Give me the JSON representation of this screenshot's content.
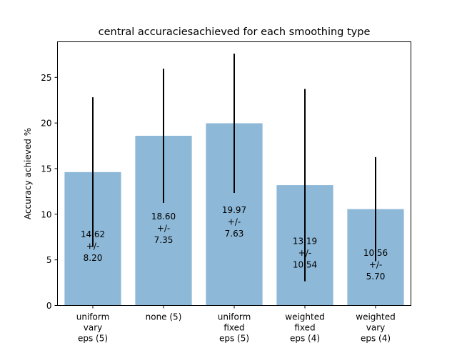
{
  "chart_data": {
    "type": "bar",
    "title": "central accuraciesachieved for each smoothing type",
    "xlabel": "",
    "ylabel": "Accuracy achieved %",
    "ylim": [
      0,
      28.9
    ],
    "yticks": [
      0,
      5,
      10,
      15,
      20,
      25
    ],
    "grid": false,
    "categories": [
      [
        "uniform",
        "vary",
        "eps (5)"
      ],
      [
        "none (5)"
      ],
      [
        "uniform",
        "fixed",
        "eps (5)"
      ],
      [
        "weighted",
        "fixed",
        "eps (4)"
      ],
      [
        "weighted",
        "vary",
        "eps (4)"
      ]
    ],
    "values": [
      14.62,
      18.6,
      19.97,
      13.19,
      10.56
    ],
    "errors": [
      8.2,
      7.35,
      7.63,
      10.54,
      5.7
    ],
    "data_labels": [
      [
        "14.62",
        "+/-",
        "8.20"
      ],
      [
        "18.60",
        "+/-",
        "7.35"
      ],
      [
        "19.97",
        "+/-",
        "7.63"
      ],
      [
        "13.19",
        "+/-",
        "10.54"
      ],
      [
        "10.56",
        "+/-",
        "5.70"
      ]
    ],
    "colors": {
      "bar": "#8db8d8",
      "error_bar": "#000000"
    }
  }
}
